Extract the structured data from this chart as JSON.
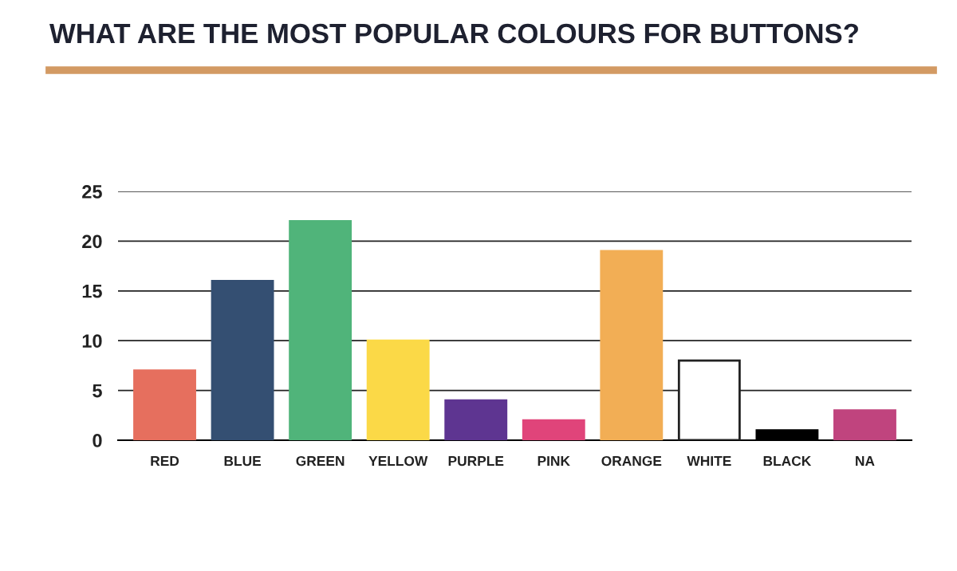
{
  "chart_data": {
    "type": "bar",
    "title": "WHAT ARE THE MOST POPULAR COLOURS FOR BUTTONS?",
    "categories": [
      "RED",
      "BLUE",
      "GREEN",
      "YELLOW",
      "PURPLE",
      "PINK",
      "ORANGE",
      "WHITE",
      "BLACK",
      "NA"
    ],
    "values": [
      7,
      16,
      22,
      10,
      4,
      2,
      19,
      8,
      1,
      3
    ],
    "colors": [
      "#e66f5e",
      "#344f72",
      "#50b47a",
      "#fbd947",
      "#5e3591",
      "#e0447a",
      "#f2ae55",
      "#ffffff",
      "#000000",
      "#c0447e"
    ],
    "ylim": [
      0,
      25
    ],
    "yticks": [
      0,
      5,
      10,
      15,
      20,
      25
    ],
    "grid": "y"
  }
}
